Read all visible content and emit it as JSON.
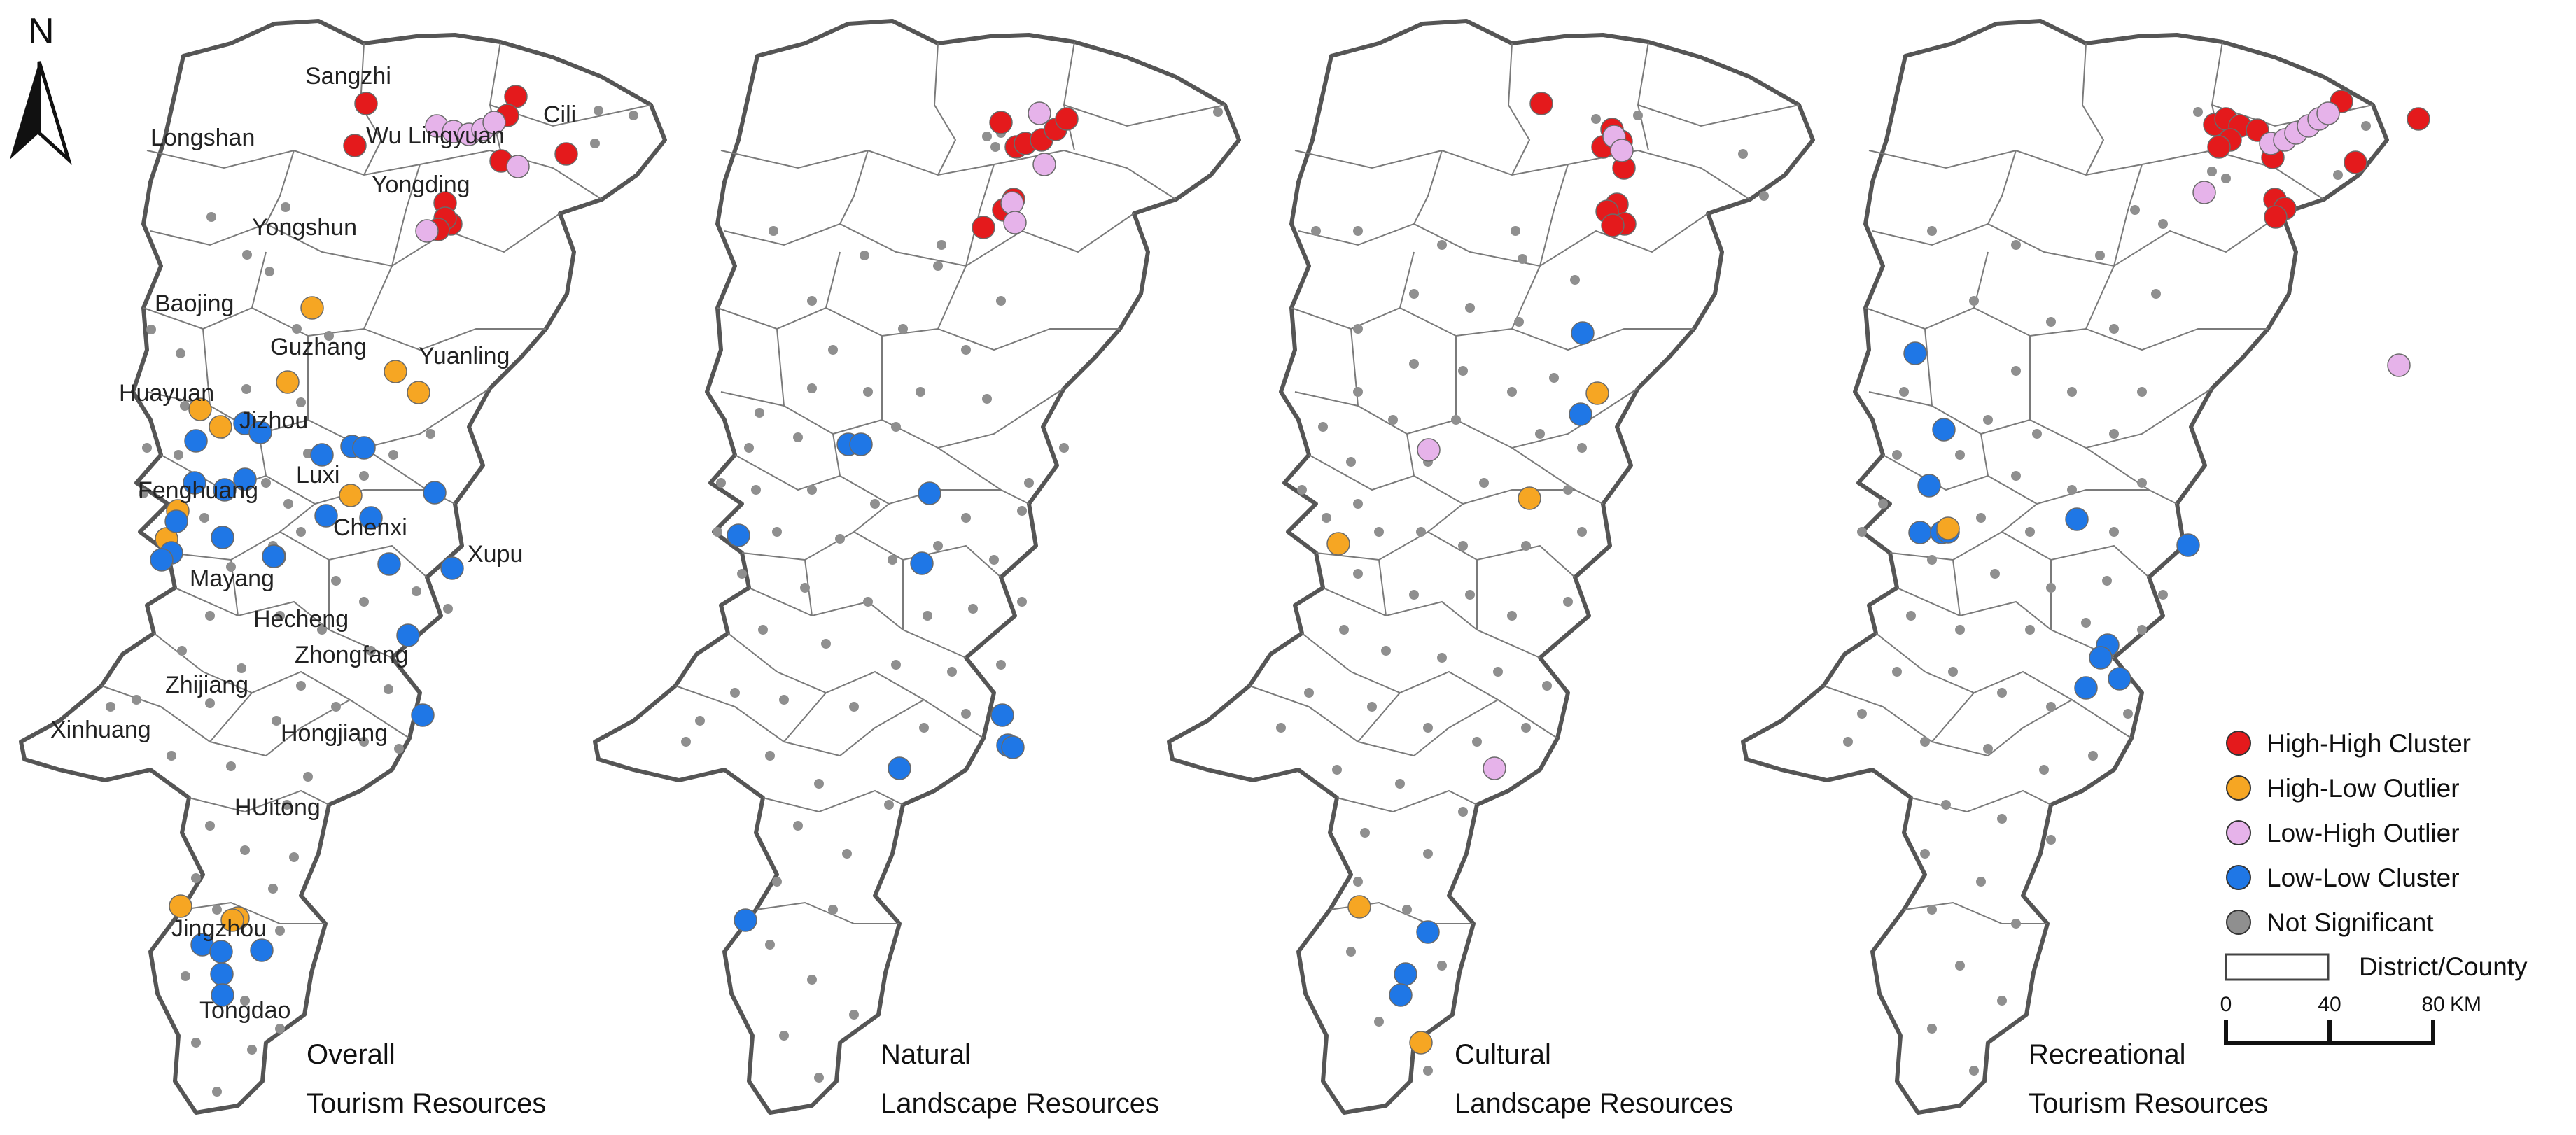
{
  "colors": {
    "high_high": "#e41a1c",
    "high_low": "#f6a623",
    "low_high": "#e6b3ea",
    "low_low": "#1f77e6",
    "not_significant": "#8f8f8f"
  },
  "north_arrow": {
    "label": "N",
    "icon": "north-arrow-icon"
  },
  "legend": {
    "items": [
      {
        "key": "high_high",
        "label": "High-High Cluster"
      },
      {
        "key": "high_low",
        "label": "High-Low Outlier"
      },
      {
        "key": "low_high",
        "label": "Low-High Outlier"
      },
      {
        "key": "low_low",
        "label": "Low-Low Cluster"
      },
      {
        "key": "not_significant",
        "label": "Not Significant"
      }
    ],
    "boundary_label": "District/County"
  },
  "scale_bar": {
    "ticks": [
      "0",
      "40",
      "80"
    ],
    "unit": "KM"
  },
  "place_names": [
    "Sangzhi",
    "Longshan",
    "Wu Lingyuan",
    "Cili",
    "Yongding",
    "Yongshun",
    "Baojing",
    "Guzhang",
    "Yuanling",
    "Huayuan",
    "Jizhou",
    "Luxi",
    "Fenghuang",
    "Chenxi",
    "Xupu",
    "Mayang",
    "Hecheng",
    "Zhongfang",
    "Zhijiang",
    "Xinhuang",
    "Hongjiang",
    "HUitong",
    "Jingzhou",
    "Tongdao"
  ],
  "panels": [
    {
      "title_line1": "Overall",
      "title_line2": "Tourism Resources"
    },
    {
      "title_line1": "Natural",
      "title_line2": "Landscape Resources"
    },
    {
      "title_line1": "Cultural",
      "title_line2": "Landscape Resources"
    },
    {
      "title_line1": "Recreational",
      "title_line2": "Tourism Resources"
    }
  ]
}
